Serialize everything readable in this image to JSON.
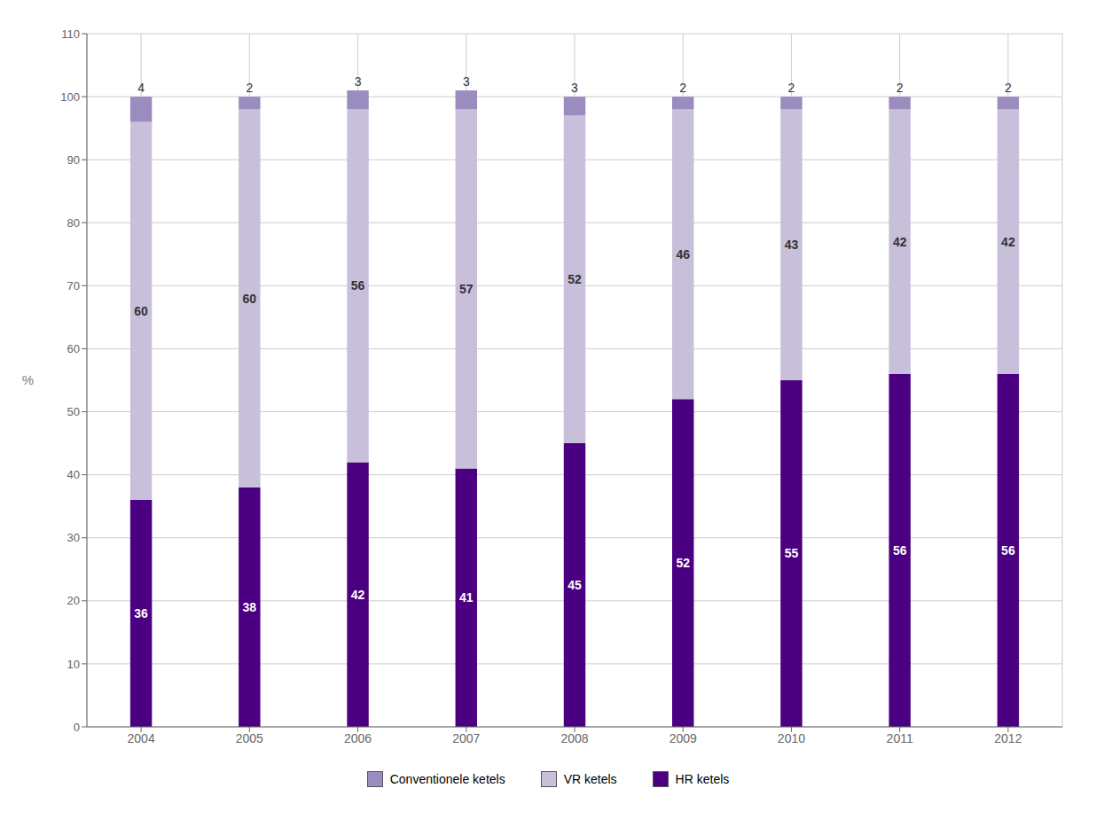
{
  "chart_data": {
    "type": "bar",
    "stacked": true,
    "data_labels": true,
    "grid": true,
    "legend": "bottom",
    "ylabel": "%",
    "categories": [
      "2004",
      "2005",
      "2006",
      "2007",
      "2008",
      "2009",
      "2010",
      "2011",
      "2012"
    ],
    "series": [
      {
        "name": "HR ketels",
        "color": "#4a0080",
        "values": [
          36,
          38,
          42,
          41,
          45,
          52,
          55,
          56,
          56
        ]
      },
      {
        "name": "VR ketels",
        "color": "#c8bfdb",
        "values": [
          60,
          60,
          56,
          57,
          52,
          46,
          43,
          42,
          42
        ]
      },
      {
        "name": "Conventionele ketels",
        "color": "#9b8cbf",
        "values": [
          4,
          2,
          3,
          3,
          3,
          2,
          2,
          2,
          2
        ]
      }
    ],
    "ylim": [
      0,
      110
    ],
    "yticks": [
      0,
      10,
      20,
      30,
      40,
      50,
      60,
      70,
      80,
      90,
      100,
      110
    ]
  }
}
